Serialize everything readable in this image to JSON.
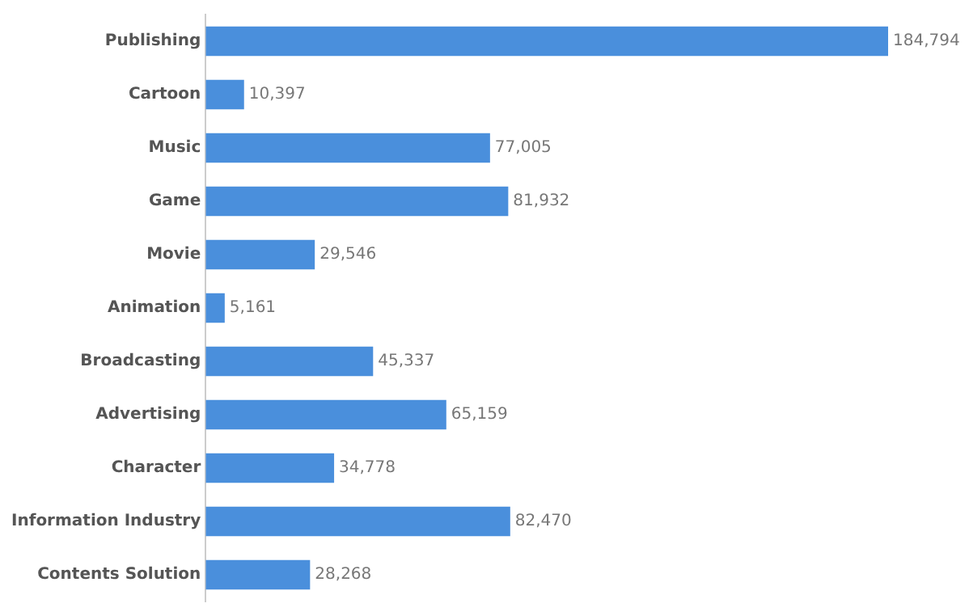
{
  "chart_data": {
    "type": "bar",
    "orientation": "horizontal",
    "categories": [
      "Publishing",
      "Cartoon",
      "Music",
      "Game",
      "Movie",
      "Animation",
      "Broadcasting",
      "Advertising",
      "Character",
      "Information Industry",
      "Contents Solution"
    ],
    "values": [
      184794,
      10397,
      77005,
      81932,
      29546,
      5161,
      45337,
      65159,
      34778,
      82470,
      28268
    ],
    "value_labels": [
      "184,794",
      "10,397",
      "77,005",
      "81,932",
      "29,546",
      "5,161",
      "45,337",
      "65,159",
      "34,778",
      "82,470",
      "28,268"
    ],
    "color": "#4a8fdc"
  }
}
